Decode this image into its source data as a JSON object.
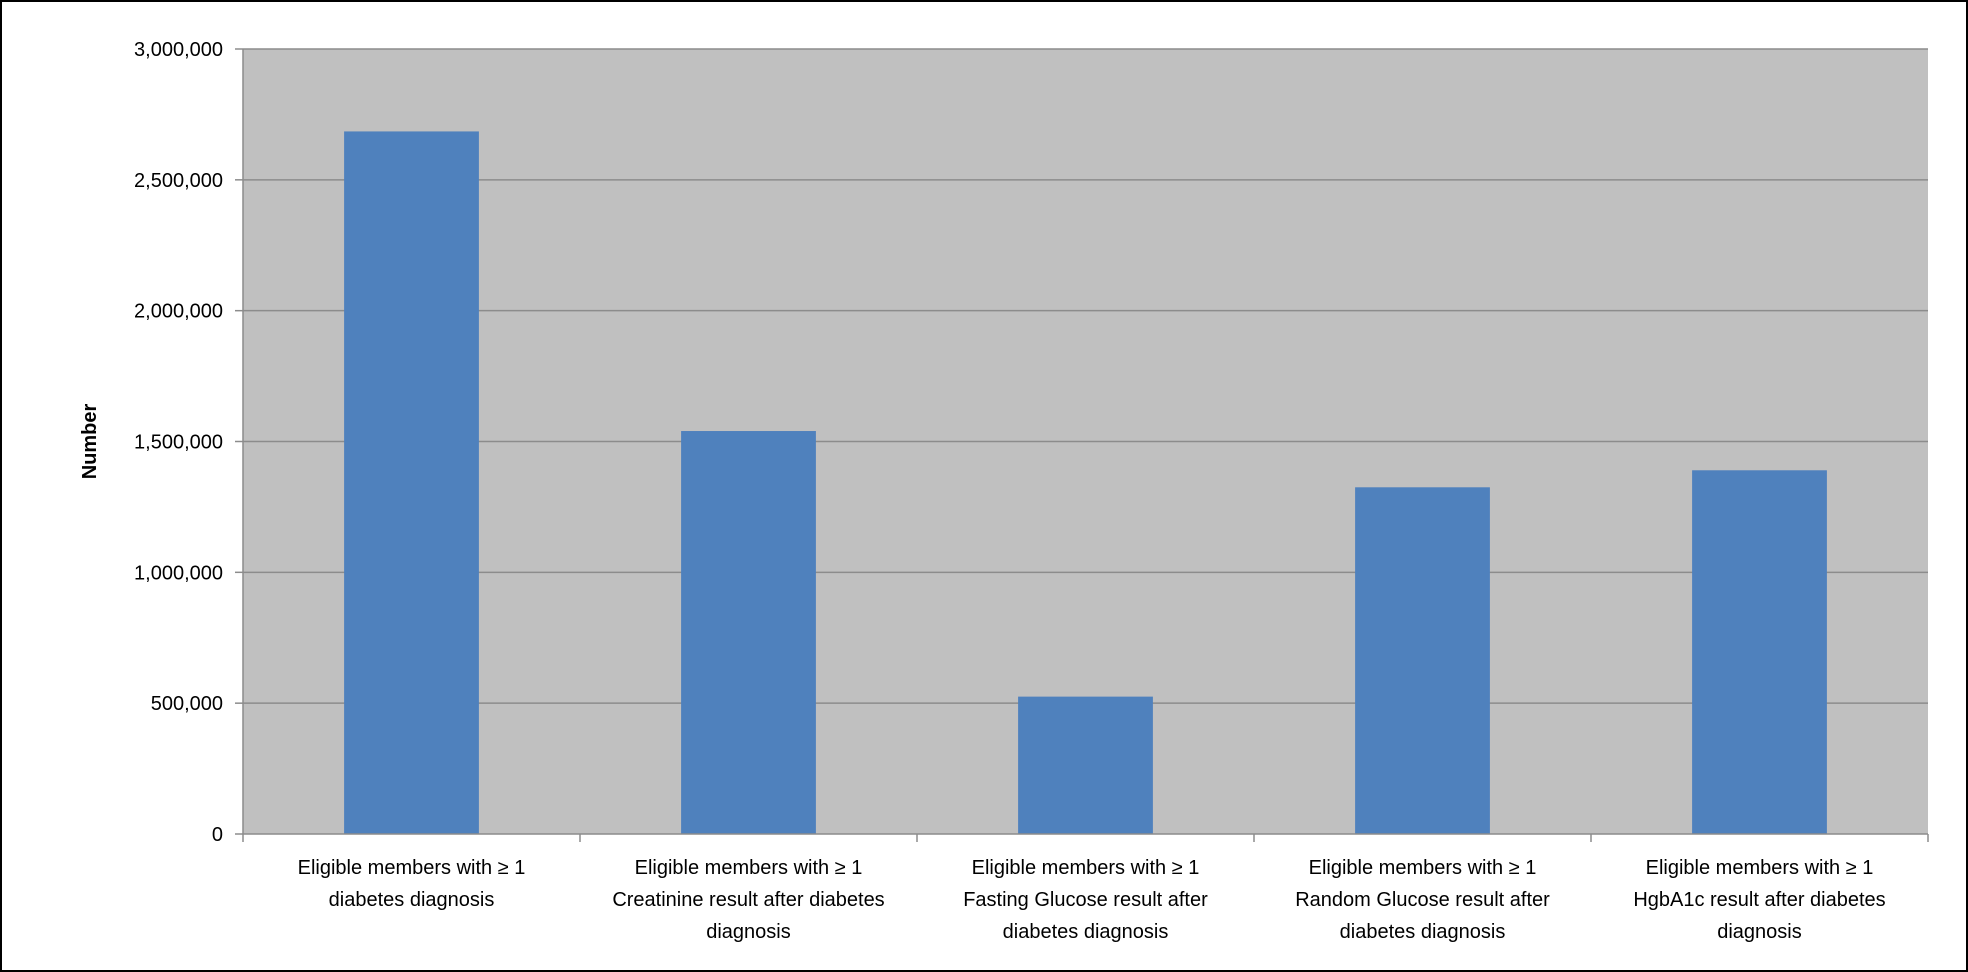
{
  "chart_data": {
    "type": "bar",
    "title": "",
    "xlabel": "",
    "ylabel": "Number",
    "ylim": [
      0,
      3000000
    ],
    "yticks": [
      0,
      500000,
      1000000,
      1500000,
      2000000,
      2500000,
      3000000
    ],
    "ytick_labels": [
      "0",
      "500,000",
      "1,000,000",
      "1,500,000",
      "2,000,000",
      "2,500,000",
      "3,000,000"
    ],
    "categories": [
      [
        "Eligible members with ≥ 1",
        "diabetes diagnosis"
      ],
      [
        "Eligible members with ≥ 1",
        "Creatinine result after diabetes",
        "diagnosis"
      ],
      [
        "Eligible members with ≥ 1",
        "Fasting Glucose result after",
        "diabetes diagnosis"
      ],
      [
        "Eligible members with ≥ 1",
        "Random Glucose result after",
        "diabetes diagnosis"
      ],
      [
        "Eligible members with ≥ 1",
        "HgbA1c result after diabetes",
        "diagnosis"
      ]
    ],
    "values": [
      2685000,
      1540000,
      525000,
      1325000,
      1390000
    ],
    "grid": true,
    "colors": {
      "bar": "#4F81BD",
      "plot_bg": "#C0C0C0",
      "grid": "#8C8C8C"
    }
  }
}
